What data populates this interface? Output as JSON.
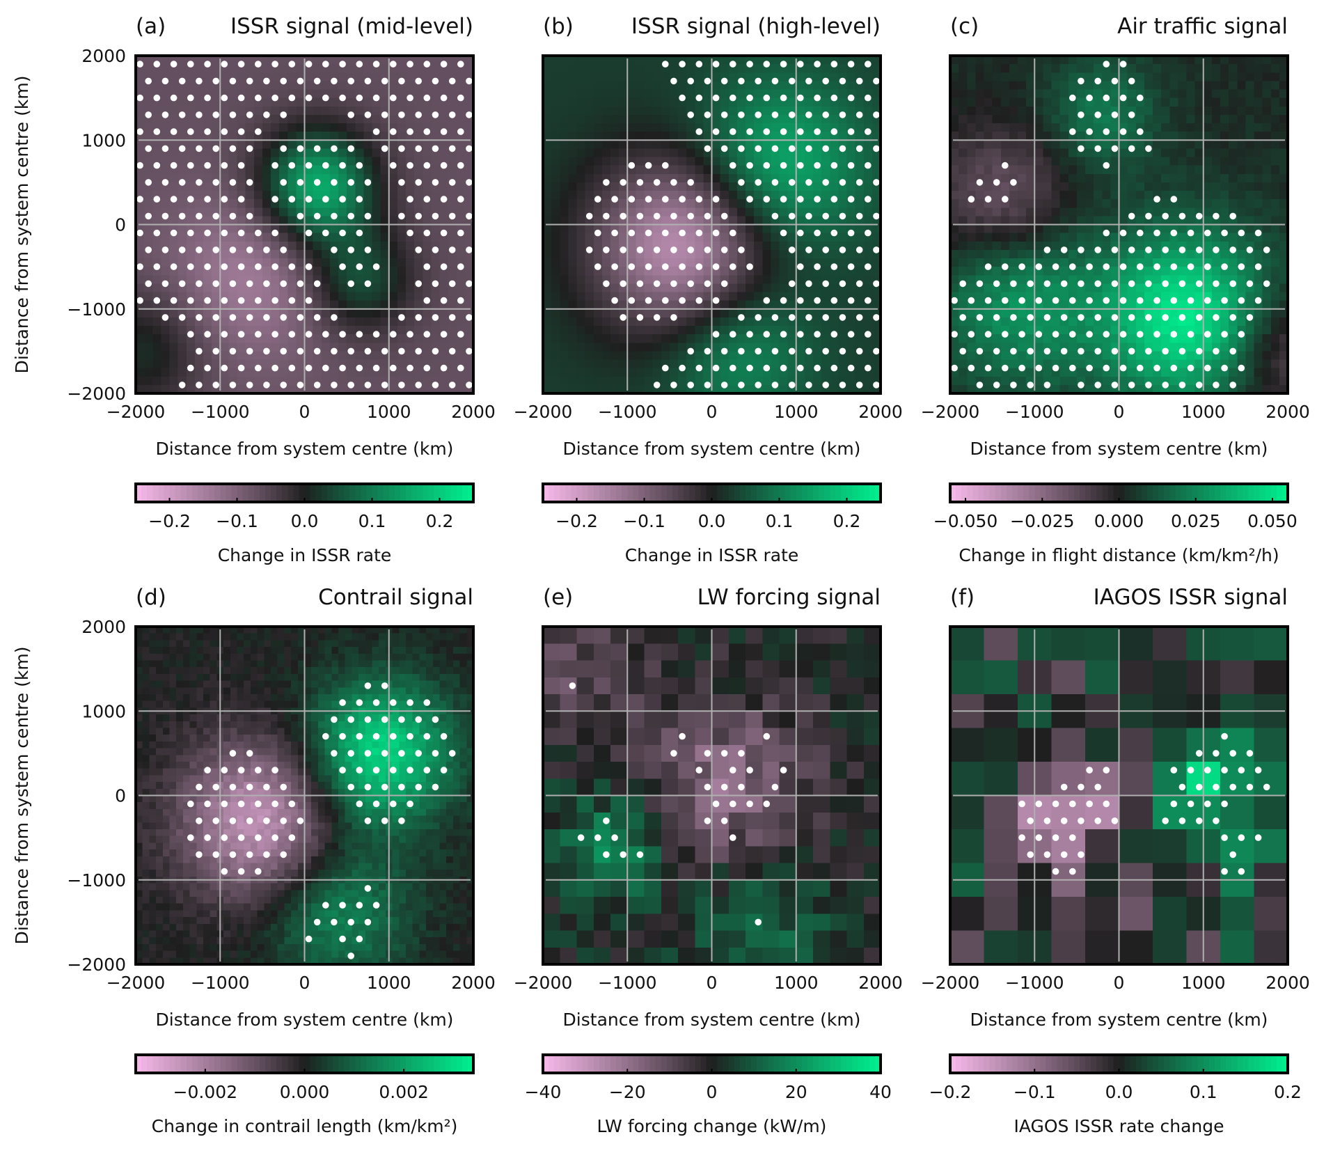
{
  "chart_data": [
    {
      "type": "heatmap",
      "panel": "(a)",
      "title": "ISSR signal (mid-level)",
      "xlabel": "Distance from system centre (km)",
      "ylabel": "Distance from system centre (km)",
      "xlim": [
        -2000,
        2000
      ],
      "ylim": [
        -2000,
        2000
      ],
      "xticks": [
        "−2000",
        "−1000",
        "0",
        "1000",
        "2000"
      ],
      "yticks": [
        "2000",
        "1000",
        "0",
        "−1000",
        "−2000"
      ],
      "colorbar": {
        "label": "Change in ISSR rate",
        "range": [
          -0.25,
          0.25
        ],
        "ticks": [
          -0.2,
          -0.1,
          0.0,
          0.1,
          0.2
        ],
        "tick_labels": [
          "−0.2",
          "−0.1",
          "0.0",
          "0.1",
          "0.2"
        ]
      },
      "grid": true,
      "stippling": "white dots mark significant regions"
    },
    {
      "type": "heatmap",
      "panel": "(b)",
      "title": "ISSR signal (high-level)",
      "xlabel": "Distance from system centre (km)",
      "ylabel": "",
      "xlim": [
        -2000,
        2000
      ],
      "ylim": [
        -2000,
        2000
      ],
      "xticks": [
        "−2000",
        "−1000",
        "0",
        "1000",
        "2000"
      ],
      "yticks": [],
      "colorbar": {
        "label": "Change in ISSR rate",
        "range": [
          -0.25,
          0.25
        ],
        "ticks": [
          -0.2,
          -0.1,
          0.0,
          0.1,
          0.2
        ],
        "tick_labels": [
          "−0.2",
          "−0.1",
          "0.0",
          "0.1",
          "0.2"
        ]
      },
      "grid": true
    },
    {
      "type": "heatmap",
      "panel": "(c)",
      "title": "Air traffic signal",
      "xlabel": "Distance from system centre (km)",
      "ylabel": "",
      "xlim": [
        -2000,
        2000
      ],
      "ylim": [
        -2000,
        2000
      ],
      "xticks": [
        "−2000",
        "−1000",
        "0",
        "1000",
        "2000"
      ],
      "yticks": [],
      "colorbar": {
        "label": "Change in flight distance (km/km²/h)",
        "range": [
          -0.055,
          0.055
        ],
        "ticks": [
          -0.05,
          -0.025,
          0,
          0.025,
          0.05
        ],
        "tick_labels": [
          "−0.050",
          "−0.025",
          "0.000",
          "0.025",
          "0.050"
        ]
      },
      "grid": true
    },
    {
      "type": "heatmap",
      "panel": "(d)",
      "title": "Contrail signal",
      "xlabel": "Distance from system centre (km)",
      "ylabel": "Distance from system centre (km)",
      "xlim": [
        -2000,
        2000
      ],
      "ylim": [
        -2000,
        2000
      ],
      "xticks": [
        "−2000",
        "−1000",
        "0",
        "1000",
        "2000"
      ],
      "yticks": [
        "2000",
        "1000",
        "0",
        "−1000",
        "−2000"
      ],
      "colorbar": {
        "label": "Change in contrail length (km/km²)",
        "range": [
          -0.0034,
          0.0034
        ],
        "ticks": [
          -0.002,
          0,
          0.002
        ],
        "tick_labels": [
          "−0.002",
          "0.000",
          "0.002"
        ]
      },
      "grid": true
    },
    {
      "type": "heatmap",
      "panel": "(e)",
      "title": "LW forcing signal",
      "xlabel": "Distance from system centre (km)",
      "ylabel": "",
      "xlim": [
        -2000,
        2000
      ],
      "ylim": [
        -2000,
        2000
      ],
      "xticks": [
        "−2000",
        "−1000",
        "0",
        "1000",
        "2000"
      ],
      "yticks": [],
      "colorbar": {
        "label": "LW forcing change (kW/m)",
        "range": [
          -40,
          40
        ],
        "ticks": [
          -40,
          -20,
          0,
          20,
          40
        ],
        "tick_labels": [
          "−40",
          "−20",
          "0",
          "20",
          "40"
        ]
      },
      "grid": true
    },
    {
      "type": "heatmap",
      "panel": "(f)",
      "title": "IAGOS ISSR signal",
      "xlabel": "Distance from system centre (km)",
      "ylabel": "",
      "xlim": [
        -2000,
        2000
      ],
      "ylim": [
        -2000,
        2000
      ],
      "xticks": [
        "−2000",
        "−1000",
        "0",
        "1000",
        "2000"
      ],
      "yticks": [],
      "colorbar": {
        "label": "IAGOS ISSR rate change",
        "range": [
          -0.2,
          0.2
        ],
        "ticks": [
          -0.2,
          -0.1,
          0,
          0.1,
          0.2
        ],
        "tick_labels": [
          "−0.2",
          "−0.1",
          "0.0",
          "0.1",
          "0.2"
        ]
      },
      "grid": true
    }
  ],
  "colors": {
    "negative": "#f7b9ea",
    "zero": "#1e1e1e",
    "positive": "#00f090",
    "grid": "#b0b0b0",
    "stipple": "#ffffff"
  }
}
